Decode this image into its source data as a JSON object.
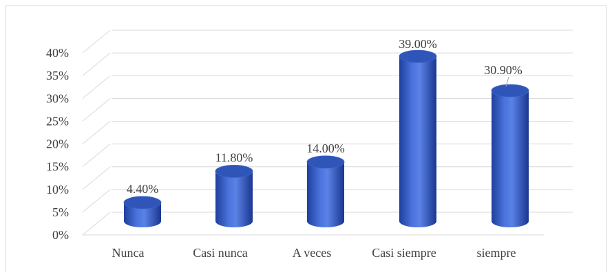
{
  "chart_data": {
    "type": "bar",
    "style": "3d-cylinder",
    "title": "",
    "xlabel": "",
    "ylabel": "",
    "categories": [
      "Nunca",
      "Casi nunca",
      "A veces",
      "Casi siempre",
      "siempre"
    ],
    "values": [
      4.4,
      11.8,
      14.0,
      39.0,
      30.9
    ],
    "data_labels": [
      "4.40%",
      "11.80%",
      "14.00%",
      "39.00%",
      "30.90%"
    ],
    "ylim": [
      0,
      40
    ],
    "yticks": [
      "0%",
      "5%",
      "10%",
      "15%",
      "20%",
      "25%",
      "30%",
      "35%",
      "40%"
    ],
    "grid": true,
    "legend": "none",
    "colors": {
      "bar_light": "#5a82e6",
      "bar_dark": "#1f3f9e",
      "top": "#2f55b8",
      "grid": "#d9d9d9",
      "text": "#404040"
    }
  }
}
